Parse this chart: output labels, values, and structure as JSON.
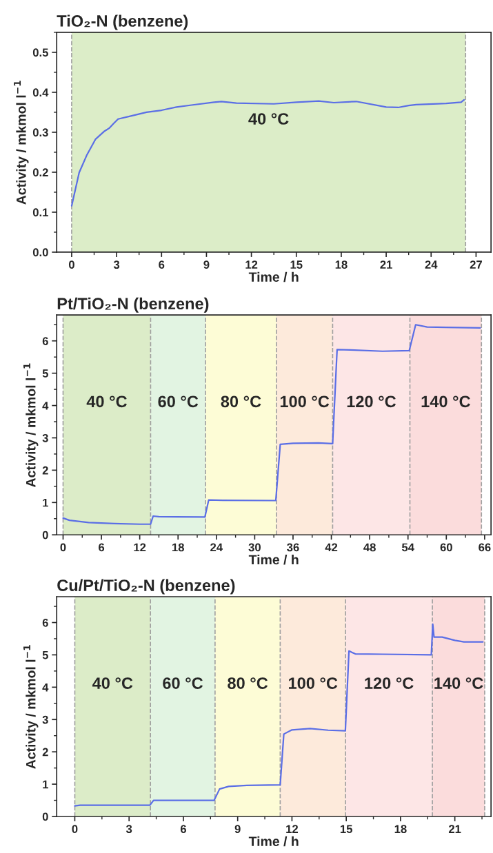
{
  "chart_data": [
    {
      "type": "line",
      "title": "TiO₂-N (benzene)",
      "xlabel": "Time / h",
      "ylabel": "Activity / mkmol l$^{−1}$",
      "xlim": [
        -1,
        28
      ],
      "xticks": [
        0,
        3,
        6,
        9,
        12,
        15,
        18,
        21,
        24,
        27
      ],
      "ylim": [
        0,
        0.55
      ],
      "yticks": [
        {
          "value": 0,
          "label": "0.0"
        },
        0.1,
        0.2,
        0.3,
        0.4,
        0.5
      ],
      "grid": false,
      "legend": false,
      "ref_lines": [
        {
          "axis": "x",
          "value": 0,
          "color": "#a0a0a0",
          "line_style": "dashed"
        },
        {
          "axis": "x",
          "value": 26.3,
          "color": "#a0a0a0",
          "line_style": "dashed"
        }
      ],
      "bands": [
        {
          "axis": "x",
          "from": 0,
          "to": 26.3,
          "label": "40 °C",
          "color": "#dcedc8"
        }
      ],
      "series": [
        {
          "color": "#5a6ee6",
          "x": [
            0,
            0.5,
            1,
            1.6,
            2.2,
            2.5,
            2.8,
            3.1,
            4,
            5,
            6,
            7,
            8,
            9.5,
            10,
            11,
            13.5,
            15,
            16.5,
            17.5,
            19,
            21,
            21.8,
            22.5,
            23,
            25,
            26,
            26.2
          ],
          "values": [
            0.116,
            0.199,
            0.242,
            0.283,
            0.303,
            0.31,
            0.322,
            0.333,
            0.341,
            0.35,
            0.355,
            0.363,
            0.368,
            0.375,
            0.377,
            0.373,
            0.371,
            0.375,
            0.378,
            0.374,
            0.377,
            0.363,
            0.362,
            0.367,
            0.369,
            0.372,
            0.375,
            0.381
          ]
        }
      ]
    },
    {
      "type": "line",
      "title": "Pt/TiO₂-N (benzene)",
      "xlabel": "Time / h",
      "ylabel": "Activity / mkmol l$^{−1}$",
      "xlim": [
        -1,
        67
      ],
      "xticks": [
        0,
        6,
        12,
        18,
        24,
        30,
        36,
        42,
        48,
        54,
        60,
        66
      ],
      "ylim": [
        0,
        6.8
      ],
      "yticks": [
        0,
        1,
        2,
        3,
        4,
        5,
        6
      ],
      "grid": false,
      "legend": false,
      "ref_lines": [
        {
          "axis": "x",
          "value": 0,
          "color": "#a0a0a0",
          "line_style": "dashed"
        },
        {
          "axis": "x",
          "value": 13.7,
          "color": "#a0a0a0",
          "line_style": "dashed"
        },
        {
          "axis": "x",
          "value": 22.3,
          "color": "#a0a0a0",
          "line_style": "dashed"
        },
        {
          "axis": "x",
          "value": 33.4,
          "color": "#a0a0a0",
          "line_style": "dashed"
        },
        {
          "axis": "x",
          "value": 42.2,
          "color": "#a0a0a0",
          "line_style": "dashed"
        },
        {
          "axis": "x",
          "value": 54.3,
          "color": "#a0a0a0",
          "line_style": "dashed"
        },
        {
          "axis": "x",
          "value": 65.5,
          "color": "#a0a0a0",
          "line_style": "dashed"
        }
      ],
      "bands": [
        {
          "axis": "x",
          "from": 0,
          "to": 13.7,
          "label": "40 °C",
          "color": "#dcecc8"
        },
        {
          "axis": "x",
          "from": 13.7,
          "to": 22.3,
          "label": "60 °C",
          "color": "#e2f4e2"
        },
        {
          "axis": "x",
          "from": 22.3,
          "to": 33.4,
          "label": "80 °C",
          "color": "#fdfcd6"
        },
        {
          "axis": "x",
          "from": 33.4,
          "to": 42.2,
          "label": "100 °C",
          "color": "#fdeadb"
        },
        {
          "axis": "x",
          "from": 42.2,
          "to": 54.3,
          "label": "120 °C",
          "color": "#fde6e6"
        },
        {
          "axis": "x",
          "from": 54.3,
          "to": 65.5,
          "label": "140 °C",
          "color": "#fbdcdc"
        }
      ],
      "series": [
        {
          "color": "#5a6ee6",
          "x": [
            0,
            1,
            4,
            8,
            12,
            13.7,
            14.1,
            15,
            22.2,
            22.8,
            25,
            33.3,
            34.0,
            36,
            40,
            42.2,
            42.9,
            45,
            50,
            54.2,
            55.2,
            57,
            60,
            65.3
          ],
          "values": [
            0.52,
            0.45,
            0.38,
            0.35,
            0.33,
            0.33,
            0.58,
            0.56,
            0.55,
            1.08,
            1.07,
            1.06,
            2.8,
            2.83,
            2.84,
            2.82,
            5.73,
            5.72,
            5.68,
            5.7,
            6.5,
            6.43,
            6.42,
            6.4
          ]
        }
      ]
    },
    {
      "type": "line",
      "title": "Cu/Pt/TiO₂-N (benzene)",
      "xlabel": "Time / h",
      "ylabel": "Activity / mkmol l$^{−1}$",
      "xlim": [
        -1,
        23
      ],
      "xticks": [
        0,
        3,
        6,
        9,
        12,
        15,
        18,
        21
      ],
      "ylim": [
        0,
        6.8
      ],
      "yticks": [
        0,
        1,
        2,
        3,
        4,
        5,
        6
      ],
      "grid": false,
      "legend": false,
      "ref_lines": [
        {
          "axis": "x",
          "value": 0,
          "color": "#a0a0a0",
          "line_style": "dashed"
        },
        {
          "axis": "x",
          "value": 4.18,
          "color": "#a0a0a0",
          "line_style": "dashed"
        },
        {
          "axis": "x",
          "value": 7.75,
          "color": "#a0a0a0",
          "line_style": "dashed"
        },
        {
          "axis": "x",
          "value": 11.35,
          "color": "#a0a0a0",
          "line_style": "dashed"
        },
        {
          "axis": "x",
          "value": 14.96,
          "color": "#a0a0a0",
          "line_style": "dashed"
        },
        {
          "axis": "x",
          "value": 19.76,
          "color": "#a0a0a0",
          "line_style": "dashed"
        },
        {
          "axis": "x",
          "value": 22.65,
          "color": "#a0a0a0",
          "line_style": "dashed"
        }
      ],
      "bands": [
        {
          "axis": "x",
          "from": 0,
          "to": 4.18,
          "label": "40 °C",
          "color": "#dcecc8"
        },
        {
          "axis": "x",
          "from": 4.18,
          "to": 7.75,
          "label": "60 °C",
          "color": "#e2f4e2"
        },
        {
          "axis": "x",
          "from": 7.75,
          "to": 11.35,
          "label": "80 °C",
          "color": "#fdfcd6"
        },
        {
          "axis": "x",
          "from": 11.35,
          "to": 14.96,
          "label": "100 °C",
          "color": "#fdeadb"
        },
        {
          "axis": "x",
          "from": 14.96,
          "to": 19.76,
          "label": "120 °C",
          "color": "#fde6e6"
        },
        {
          "axis": "x",
          "from": 19.76,
          "to": 22.65,
          "label": "140 °C",
          "color": "#fbdcdc"
        }
      ],
      "series": [
        {
          "color": "#5a6ee6",
          "x": [
            0,
            0.3,
            4.15,
            4.35,
            7.7,
            8.0,
            8.5,
            9.5,
            11.35,
            11.55,
            12,
            13,
            14,
            14.95,
            15.15,
            15.5,
            17,
            19.7,
            19.78,
            19.85,
            20.3,
            21,
            21.5,
            22.55
          ],
          "values": [
            0.33,
            0.35,
            0.35,
            0.5,
            0.5,
            0.85,
            0.93,
            0.96,
            0.98,
            2.55,
            2.68,
            2.72,
            2.67,
            2.65,
            5.12,
            5.03,
            5.02,
            5.0,
            5.95,
            5.55,
            5.55,
            5.45,
            5.4,
            5.4
          ]
        }
      ]
    }
  ]
}
